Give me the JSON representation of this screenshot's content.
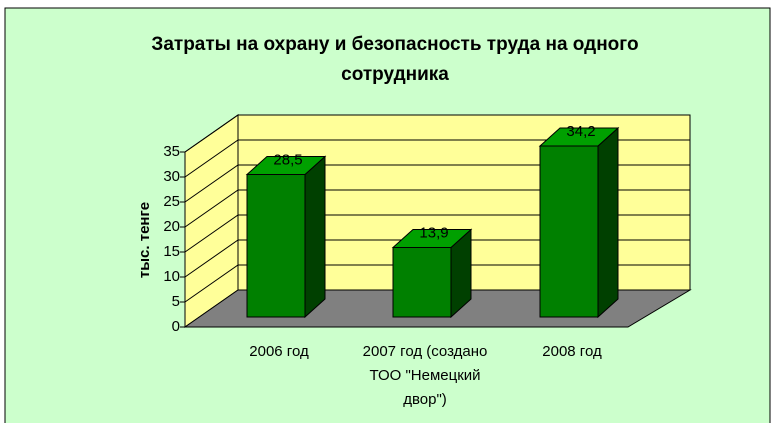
{
  "chart_data": {
    "type": "bar",
    "title": [
      "Затраты на охрану и безопасность труда на одного",
      "сотрудника"
    ],
    "y_label": "тыс. тенге",
    "categories": [
      [
        "2006 год"
      ],
      [
        "2007 год (создано",
        "ТОО \"Немецкий",
        "двор\")"
      ],
      [
        "2008 год"
      ]
    ],
    "values": [
      28.5,
      13.9,
      34.2
    ],
    "value_labels": [
      "28,5",
      "13,9",
      "34,2"
    ],
    "color": "#008000",
    "ylim": [
      0,
      35
    ],
    "yticks": [
      0,
      5,
      10,
      15,
      20,
      25,
      30,
      35
    ],
    "grid": true
  }
}
